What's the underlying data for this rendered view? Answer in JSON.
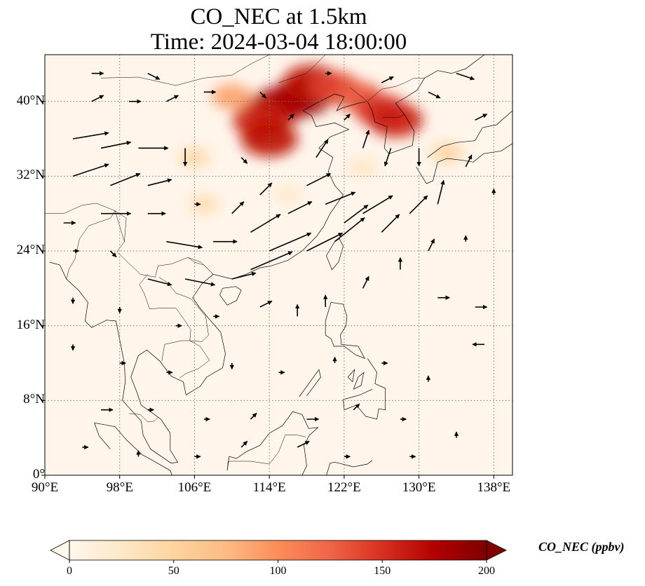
{
  "figure": {
    "title_line1": "CO_NEC at 1.5km",
    "title_line2": "Time: 2024-03-04 18:00:00"
  },
  "map": {
    "projection": "PlateCarree",
    "lon_range": [
      90,
      140
    ],
    "lat_range": [
      0,
      45
    ],
    "gridlines": "dotted",
    "lat_ticks": [
      {
        "value": 0,
        "label": "0°"
      },
      {
        "value": 8,
        "label": "8°N"
      },
      {
        "value": 16,
        "label": "16°N"
      },
      {
        "value": 24,
        "label": "24°N"
      },
      {
        "value": 32,
        "label": "32°N"
      },
      {
        "value": 40,
        "label": "40°N"
      }
    ],
    "lon_ticks": [
      {
        "value": 90,
        "label": "90°E"
      },
      {
        "value": 98,
        "label": "98°E"
      },
      {
        "value": 106,
        "label": "106°E"
      },
      {
        "value": 114,
        "label": "114°E"
      },
      {
        "value": 122,
        "label": "122°E"
      },
      {
        "value": 130,
        "label": "130°E"
      },
      {
        "value": 138,
        "label": "138°E"
      }
    ],
    "background_color": "#fff5eb",
    "coastline_color": "#000000",
    "vector_color": "#000000"
  },
  "colorbar": {
    "label": "CO_NEC (ppbv)",
    "colormap": "OrRd",
    "min": 0,
    "max": 200,
    "extend": "both",
    "ticks": [
      "0",
      "50",
      "100",
      "150",
      "200"
    ],
    "colors": [
      "#fff7ec",
      "#fee8c8",
      "#fdd49e",
      "#fdbb84",
      "#fc8d59",
      "#ef6548",
      "#d7301f",
      "#b30000",
      "#7f0000"
    ]
  },
  "concentration_regions": [
    {
      "lon": 117.5,
      "lat": 40.5,
      "value": 190
    },
    {
      "lon": 115.0,
      "lat": 39.5,
      "value": 180
    },
    {
      "lon": 118.5,
      "lat": 42.0,
      "value": 170
    },
    {
      "lon": 113.0,
      "lat": 38.0,
      "value": 160
    },
    {
      "lon": 114.0,
      "lat": 36.0,
      "value": 170
    },
    {
      "lon": 121.0,
      "lat": 41.5,
      "value": 140
    },
    {
      "lon": 123.5,
      "lat": 40.5,
      "value": 130
    },
    {
      "lon": 126.0,
      "lat": 39.0,
      "value": 150
    },
    {
      "lon": 127.5,
      "lat": 38.0,
      "value": 160
    },
    {
      "lon": 110.0,
      "lat": 40.5,
      "value": 90
    },
    {
      "lon": 106.0,
      "lat": 34.0,
      "value": 45
    },
    {
      "lon": 107.0,
      "lat": 29.0,
      "value": 40
    },
    {
      "lon": 133.0,
      "lat": 34.5,
      "value": 50
    },
    {
      "lon": 116.0,
      "lat": 30.0,
      "value": 25
    },
    {
      "lon": 124.0,
      "lat": 33.0,
      "value": 30
    }
  ],
  "wind_vectors": [
    {
      "lon": 93,
      "lat": 36,
      "u": 6,
      "v": 1
    },
    {
      "lon": 96,
      "lat": 35,
      "u": 5,
      "v": 1
    },
    {
      "lon": 100,
      "lat": 35,
      "u": 5,
      "v": 0
    },
    {
      "lon": 93,
      "lat": 32,
      "u": 6,
      "v": 2
    },
    {
      "lon": 97,
      "lat": 31,
      "u": 5,
      "v": 2
    },
    {
      "lon": 101,
      "lat": 31,
      "u": 4,
      "v": 1
    },
    {
      "lon": 96,
      "lat": 28,
      "u": 5,
      "v": 0
    },
    {
      "lon": 101,
      "lat": 28,
      "u": 3,
      "v": 0
    },
    {
      "lon": 103,
      "lat": 25,
      "u": 6,
      "v": -1
    },
    {
      "lon": 108,
      "lat": 25,
      "u": 4,
      "v": 0
    },
    {
      "lon": 101,
      "lat": 21,
      "u": 4,
      "v": -1
    },
    {
      "lon": 105,
      "lat": 21,
      "u": 5,
      "v": -1
    },
    {
      "lon": 110,
      "lat": 21,
      "u": 4,
      "v": 1
    },
    {
      "lon": 112,
      "lat": 22,
      "u": 7,
      "v": 3
    },
    {
      "lon": 114,
      "lat": 24,
      "u": 7,
      "v": 3
    },
    {
      "lon": 118,
      "lat": 24,
      "u": 6,
      "v": 3
    },
    {
      "lon": 112,
      "lat": 26,
      "u": 5,
      "v": 3
    },
    {
      "lon": 116,
      "lat": 28,
      "u": 4,
      "v": 2
    },
    {
      "lon": 120,
      "lat": 29,
      "u": 5,
      "v": 2
    },
    {
      "lon": 122,
      "lat": 27,
      "u": 4,
      "v": 3
    },
    {
      "lon": 124,
      "lat": 28,
      "u": 5,
      "v": 3
    },
    {
      "lon": 121,
      "lat": 25,
      "u": 5,
      "v": 4
    },
    {
      "lon": 126,
      "lat": 26,
      "u": 3,
      "v": 3
    },
    {
      "lon": 129,
      "lat": 28,
      "u": 3,
      "v": 3
    },
    {
      "lon": 132,
      "lat": 29,
      "u": 1,
      "v": 4
    },
    {
      "lon": 118,
      "lat": 31,
      "u": 4,
      "v": 2
    },
    {
      "lon": 113,
      "lat": 30,
      "u": 2,
      "v": 2
    },
    {
      "lon": 119,
      "lat": 34,
      "u": 2,
      "v": 3
    },
    {
      "lon": 124,
      "lat": 35,
      "u": 1,
      "v": 3
    },
    {
      "lon": 127,
      "lat": 35,
      "u": -1,
      "v": -3
    },
    {
      "lon": 130,
      "lat": 35,
      "u": 0,
      "v": -3
    },
    {
      "lon": 105,
      "lat": 35,
      "u": 0,
      "v": -3
    },
    {
      "lon": 111,
      "lat": 34,
      "u": 1,
      "v": -1
    },
    {
      "lon": 95,
      "lat": 40,
      "u": 2,
      "v": 1
    },
    {
      "lon": 99,
      "lat": 40,
      "u": 2,
      "v": 0
    },
    {
      "lon": 103,
      "lat": 40,
      "u": 2,
      "v": 1
    },
    {
      "lon": 107,
      "lat": 41,
      "u": 2,
      "v": 0
    },
    {
      "lon": 101,
      "lat": 43,
      "u": 2,
      "v": -1
    },
    {
      "lon": 95,
      "lat": 43,
      "u": 2,
      "v": 0
    },
    {
      "lon": 134,
      "lat": 43,
      "u": 3,
      "v": -1
    },
    {
      "lon": 131,
      "lat": 41,
      "u": 2,
      "v": -1
    },
    {
      "lon": 136,
      "lat": 38,
      "u": 2,
      "v": 1
    },
    {
      "lon": 135,
      "lat": 33,
      "u": 1,
      "v": 2
    },
    {
      "lon": 138,
      "lat": 30,
      "u": 0,
      "v": 1
    },
    {
      "lon": 128,
      "lat": 22,
      "u": 0,
      "v": 2
    },
    {
      "lon": 132,
      "lat": 19,
      "u": 2,
      "v": 0
    },
    {
      "lon": 136,
      "lat": 18,
      "u": 2,
      "v": 0
    },
    {
      "lon": 137,
      "lat": 14,
      "u": -2,
      "v": 0
    },
    {
      "lon": 124,
      "lat": 20,
      "u": 1,
      "v": 2
    },
    {
      "lon": 120,
      "lat": 18,
      "u": 0,
      "v": 2
    },
    {
      "lon": 117,
      "lat": 17,
      "u": 0,
      "v": 2
    },
    {
      "lon": 113,
      "lat": 18,
      "u": 2,
      "v": 1
    },
    {
      "lon": 108,
      "lat": 17,
      "u": 1,
      "v": 0
    },
    {
      "lon": 104,
      "lat": 16,
      "u": 1,
      "v": 0
    },
    {
      "lon": 98,
      "lat": 18,
      "u": 0,
      "v": -1
    },
    {
      "lon": 93,
      "lat": 19,
      "u": 0,
      "v": -1
    },
    {
      "lon": 93,
      "lat": 14,
      "u": 0,
      "v": -1
    },
    {
      "lon": 98,
      "lat": 12,
      "u": 1,
      "v": 0
    },
    {
      "lon": 103,
      "lat": 11,
      "u": 1,
      "v": 0
    },
    {
      "lon": 110,
      "lat": 12,
      "u": 0,
      "v": -1
    },
    {
      "lon": 115,
      "lat": 11,
      "u": 1,
      "v": 0
    },
    {
      "lon": 121,
      "lat": 12,
      "u": 0,
      "v": 1
    },
    {
      "lon": 126,
      "lat": 12,
      "u": 1,
      "v": 0
    },
    {
      "lon": 131,
      "lat": 10,
      "u": 0,
      "v": 1
    },
    {
      "lon": 96,
      "lat": 7,
      "u": 2,
      "v": 0
    },
    {
      "lon": 101,
      "lat": 7,
      "u": 1,
      "v": 0
    },
    {
      "lon": 107,
      "lat": 6,
      "u": 1,
      "v": 0
    },
    {
      "lon": 112,
      "lat": 6,
      "u": 1,
      "v": 1
    },
    {
      "lon": 118,
      "lat": 6,
      "u": 2,
      "v": 0
    },
    {
      "lon": 123,
      "lat": 7,
      "u": 1,
      "v": 1
    },
    {
      "lon": 128,
      "lat": 6,
      "u": 1,
      "v": 0
    },
    {
      "lon": 94,
      "lat": 3,
      "u": 1,
      "v": 0
    },
    {
      "lon": 100,
      "lat": 2,
      "u": 0,
      "v": 1
    },
    {
      "lon": 106,
      "lat": 2,
      "u": 1,
      "v": 0
    },
    {
      "lon": 111,
      "lat": 3,
      "u": 1,
      "v": 1
    },
    {
      "lon": 117,
      "lat": 3,
      "u": 2,
      "v": 1
    },
    {
      "lon": 122,
      "lat": 2,
      "u": 1,
      "v": 0
    },
    {
      "lon": 129,
      "lat": 2,
      "u": 1,
      "v": 0
    },
    {
      "lon": 134,
      "lat": 4,
      "u": 0,
      "v": 1
    },
    {
      "lon": 135,
      "lat": 25,
      "u": 0,
      "v": 1
    },
    {
      "lon": 131,
      "lat": 24,
      "u": 1,
      "v": 2
    },
    {
      "lon": 110,
      "lat": 28,
      "u": 2,
      "v": 2
    },
    {
      "lon": 106,
      "lat": 29,
      "u": 1,
      "v": 0
    },
    {
      "lon": 92,
      "lat": 27,
      "u": 2,
      "v": 0
    },
    {
      "lon": 93,
      "lat": 24,
      "u": 1,
      "v": 0
    },
    {
      "lon": 97,
      "lat": 24,
      "u": 1,
      "v": -1
    },
    {
      "lon": 116,
      "lat": 38,
      "u": 1,
      "v": 1
    },
    {
      "lon": 113,
      "lat": 41,
      "u": 1,
      "v": -1
    },
    {
      "lon": 122,
      "lat": 38,
      "u": 1,
      "v": 1
    },
    {
      "lon": 126,
      "lat": 42,
      "u": 2,
      "v": 1
    },
    {
      "lon": 120,
      "lat": 43,
      "u": 1,
      "v": 0
    }
  ]
}
